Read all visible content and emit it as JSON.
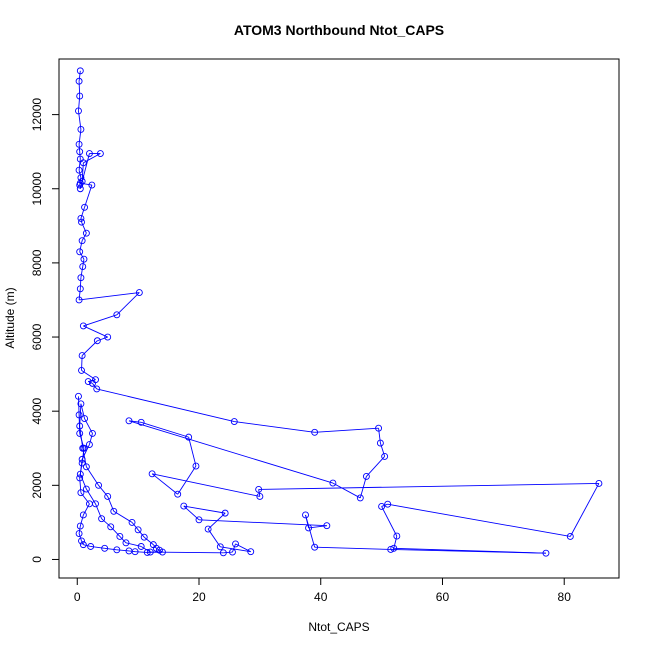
{
  "chart_data": {
    "type": "scatter",
    "title": "ATOM3 Northbound Ntot_CAPS",
    "xlabel": "Ntot_CAPS",
    "ylabel": "Altitude (m)",
    "xlim": [
      -3,
      89
    ],
    "ylim": [
      -500,
      13500
    ],
    "xticks": [
      "0",
      "20",
      "40",
      "60",
      "80"
    ],
    "xtick_values": [
      0,
      20,
      40,
      60,
      80
    ],
    "yticks": [
      "0",
      "2000",
      "4000",
      "6000",
      "8000",
      "10000",
      "12000"
    ],
    "ytick_values": [
      0,
      2000,
      4000,
      6000,
      8000,
      10000,
      12000
    ],
    "series_color": "#0000ff",
    "marker": "open-circle",
    "connected": true,
    "x": [
      0.5,
      0.3,
      0.4,
      0.2,
      0.6,
      0.3,
      0.4,
      0.5,
      0.3,
      0.6,
      0.4,
      0.5,
      2.0,
      3.8,
      1.0,
      0.8,
      0.5,
      2.4,
      1.2,
      0.6,
      0.7,
      1.5,
      0.8,
      0.4,
      1.1,
      0.9,
      0.6,
      0.5,
      0.3,
      10.2,
      6.5,
      1.0,
      5.0,
      3.3,
      0.8,
      0.7,
      3.0,
      1.8,
      2.5,
      3.2,
      25.8,
      39.0,
      49.5,
      49.8,
      50.5,
      47.5,
      46.5,
      42.0,
      8.5,
      10.5,
      18.3,
      19.5,
      16.5,
      12.3,
      30.0,
      29.8,
      85.7,
      81.0,
      51.0,
      50.0,
      52.5,
      52.0,
      77.0,
      51.5,
      39.0,
      37.5,
      38.0,
      41.0,
      20.0,
      17.5,
      24.3,
      21.5,
      23.5,
      28.5,
      26.0,
      25.5,
      24.0,
      12.0,
      10.5,
      8.0,
      7.0,
      5.5,
      4.0,
      3.0,
      1.5,
      0.5,
      0.8,
      2.0,
      2.5,
      1.2,
      0.6,
      0.4,
      0.9,
      1.5,
      3.5,
      5.0,
      6.0,
      9.0,
      10.0,
      11.0,
      12.5,
      13.0,
      13.5,
      14.0,
      11.5,
      9.5,
      8.5,
      6.5,
      4.5,
      2.2,
      1.0,
      0.7,
      0.3,
      0.5,
      1.0,
      2.0,
      0.6,
      0.4,
      0.8,
      1.1,
      0.4,
      0.3,
      0.2
    ],
    "y": [
      13180,
      12900,
      12500,
      12100,
      11600,
      11200,
      11000,
      10800,
      10500,
      10300,
      10100,
      10000,
      10950,
      10950,
      10700,
      10200,
      10150,
      10100,
      9500,
      9200,
      9100,
      8800,
      8600,
      8300,
      8100,
      7900,
      7600,
      7300,
      7000,
      7200,
      6600,
      6300,
      6000,
      5900,
      5500,
      5100,
      4850,
      4800,
      4750,
      4600,
      3720,
      3430,
      3540,
      3140,
      2780,
      2240,
      1660,
      2060,
      3740,
      3700,
      3300,
      2520,
      1760,
      2310,
      1700,
      1890,
      2050,
      620,
      1490,
      1430,
      630,
      300,
      170,
      270,
      330,
      1200,
      850,
      910,
      1070,
      1440,
      1250,
      820,
      340,
      210,
      420,
      200,
      180,
      200,
      350,
      450,
      620,
      880,
      1100,
      1500,
      1900,
      2300,
      2700,
      3100,
      3400,
      3800,
      4200,
      3600,
      3000,
      2500,
      2000,
      1700,
      1300,
      1000,
      800,
      600,
      400,
      300,
      250,
      200,
      190,
      210,
      230,
      260,
      300,
      350,
      400,
      500,
      700,
      900,
      1200,
      1500,
      1800,
      2200,
      2600,
      3000,
      3400,
      3900,
      4400
    ]
  }
}
